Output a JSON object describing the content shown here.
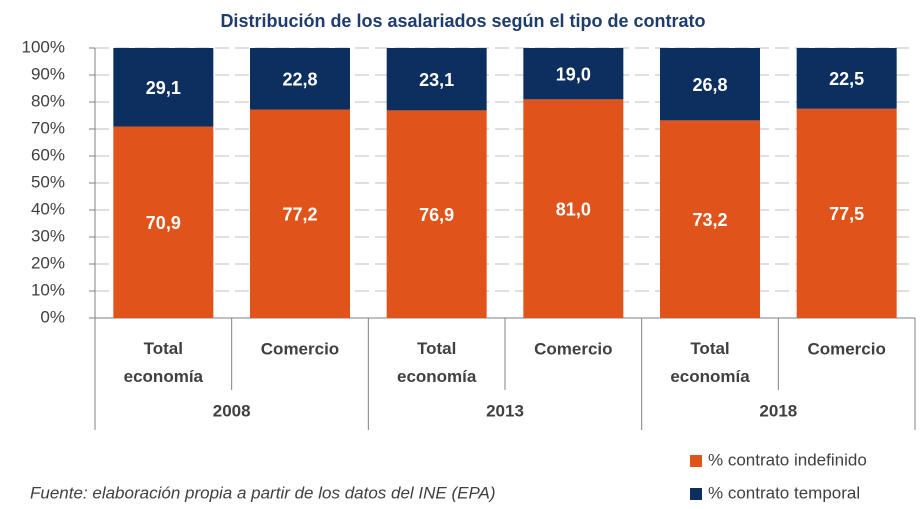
{
  "chart_data": {
    "type": "stacked_bar",
    "title": "Distribución de los asalariados según el tipo de contrato",
    "categories": [
      "Total economía",
      "Comercio",
      "Total economía",
      "Comercio",
      "Total economía",
      "Comercio"
    ],
    "groups": [
      "2008",
      "2013",
      "2018"
    ],
    "series": [
      {
        "name": "% contrato indefinido",
        "color": "#e0531b",
        "values": [
          70.9,
          77.2,
          76.9,
          81.0,
          73.2,
          77.5
        ],
        "value_labels": [
          "70,9",
          "77,2",
          "76,9",
          "81,0",
          "73,2",
          "77,5"
        ]
      },
      {
        "name": "% contrato temporal",
        "color": "#0c2f5f",
        "values": [
          29.1,
          22.8,
          23.1,
          19.0,
          26.8,
          22.5
        ],
        "value_labels": [
          "29,1",
          "22,8",
          "23,1",
          "19,0",
          "26,8",
          "22,5"
        ]
      }
    ],
    "ylim": [
      0,
      100
    ],
    "yticks": [
      {
        "value": 0,
        "label": "0%"
      },
      {
        "value": 10,
        "label": "10%"
      },
      {
        "value": 20,
        "label": "20%"
      },
      {
        "value": 30,
        "label": "30%"
      },
      {
        "value": 40,
        "label": "40%"
      },
      {
        "value": 50,
        "label": "50%"
      },
      {
        "value": 60,
        "label": "60%"
      },
      {
        "value": 70,
        "label": "70%"
      },
      {
        "value": 80,
        "label": "80%"
      },
      {
        "value": 90,
        "label": "90%"
      },
      {
        "value": 100,
        "label": "100%"
      }
    ],
    "grid": true,
    "legend": "bottom-right",
    "note": "Fuente: elaboración propia a partir de los datos del INE (EPA)"
  }
}
